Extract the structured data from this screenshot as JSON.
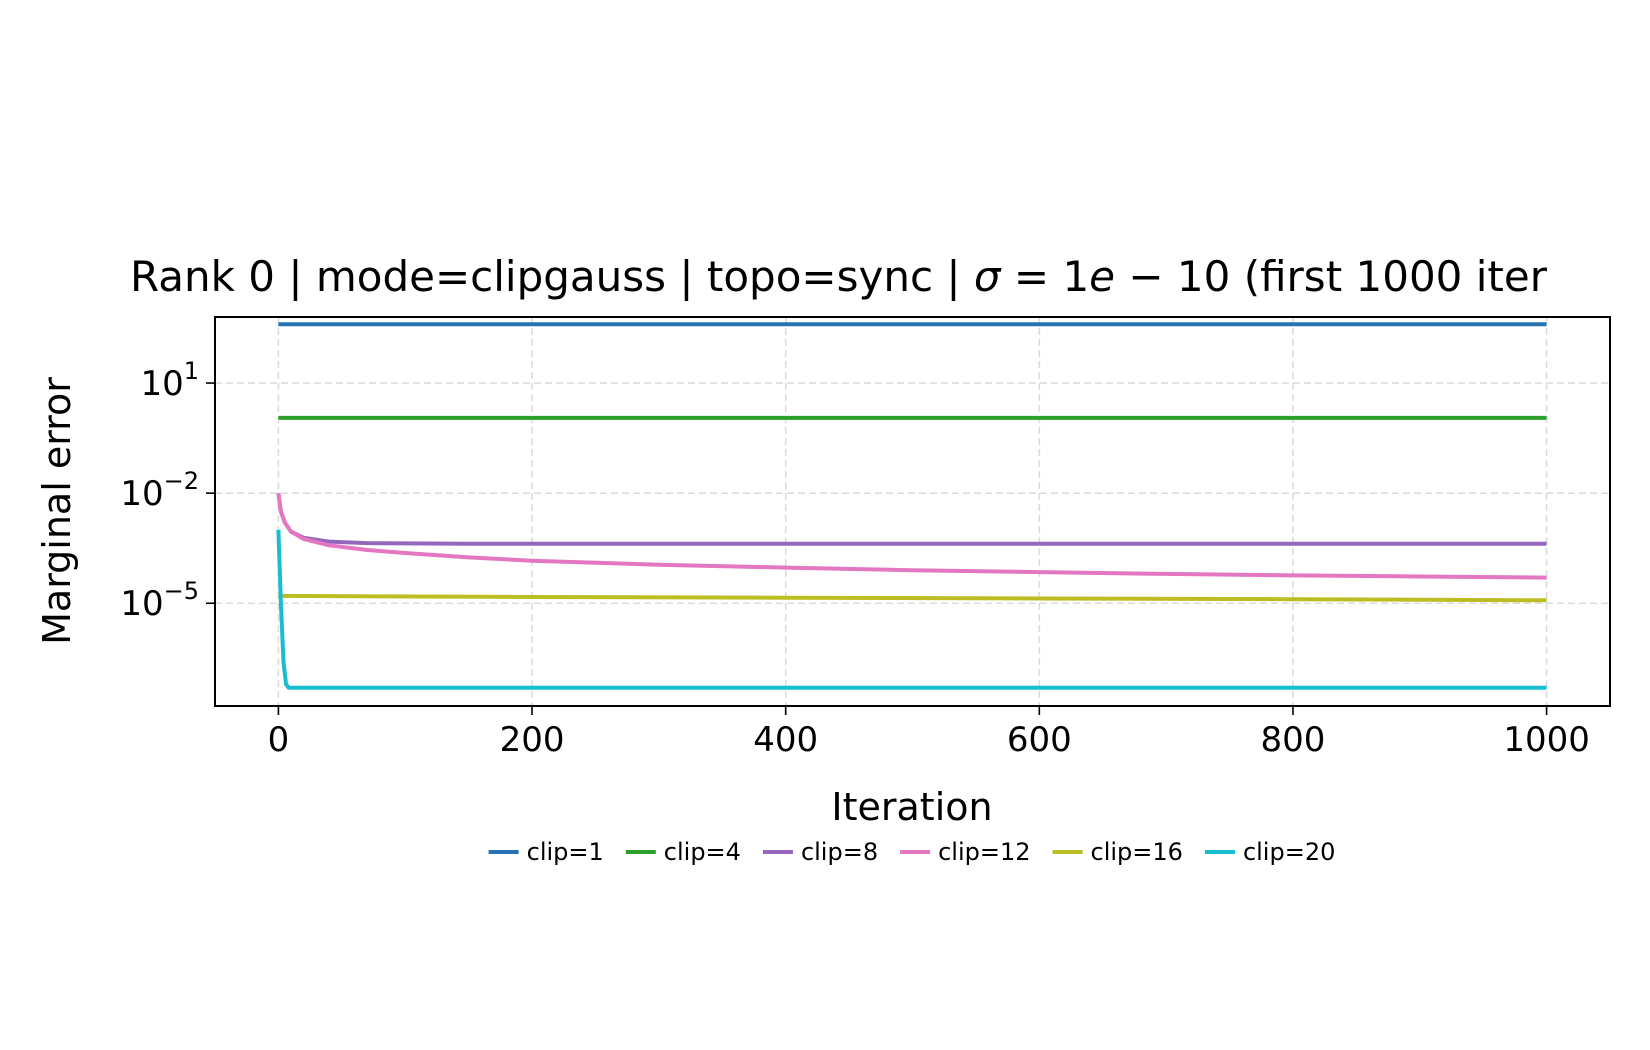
{
  "chart_data": {
    "type": "line",
    "title": "Rank 0 | mode=clipgauss | topo=sync | σ = 1e − 10 (first 1000 iter",
    "title_parts": {
      "main": "Rank 0 | mode=clipgauss | topo=sync | ",
      "sigma": "σ",
      "equals": " = ",
      "value_mantissa": "1",
      "value_e": "e",
      "value_tail": " − 10 (first 1000 iter"
    },
    "xlabel": "Iteration",
    "ylabel": "Marginal error",
    "xlim": [
      -50,
      1050
    ],
    "ylim_log10": [
      -7.8,
      2.8
    ],
    "yscale": "log",
    "grid": true,
    "legend_placement": "below",
    "x_ticks": [
      {
        "value": 0,
        "label": "0"
      },
      {
        "value": 200,
        "label": "200"
      },
      {
        "value": 400,
        "label": "400"
      },
      {
        "value": 600,
        "label": "600"
      },
      {
        "value": 800,
        "label": "800"
      },
      {
        "value": 1000,
        "label": "1000"
      }
    ],
    "y_ticks": [
      {
        "log10": 1,
        "base": "10",
        "exp": "1"
      },
      {
        "log10": -2,
        "base": "10",
        "exp": "−2"
      },
      {
        "log10": -5,
        "base": "10",
        "exp": "−5"
      }
    ],
    "series": [
      {
        "name": "clip=1",
        "color": "#2674b4",
        "x": [
          0,
          1000
        ],
        "log10_y": [
          2.6,
          2.6
        ]
      },
      {
        "name": "clip=4",
        "color": "#2ca02c",
        "x": [
          0,
          1000
        ],
        "log10_y": [
          0.05,
          0.05
        ]
      },
      {
        "name": "clip=8",
        "color": "#9467bd",
        "x": [
          0,
          2,
          5,
          10,
          20,
          40,
          70,
          100,
          150,
          200,
          1000
        ],
        "log10_y": [
          -2.0,
          -2.5,
          -2.8,
          -3.05,
          -3.22,
          -3.32,
          -3.36,
          -3.37,
          -3.38,
          -3.38,
          -3.38
        ]
      },
      {
        "name": "clip=12",
        "color": "#e377c2",
        "x": [
          0,
          2,
          5,
          10,
          20,
          40,
          70,
          100,
          150,
          200,
          300,
          400,
          500,
          600,
          700,
          800,
          900,
          1000
        ],
        "log10_y": [
          -2.0,
          -2.5,
          -2.8,
          -3.05,
          -3.25,
          -3.42,
          -3.55,
          -3.63,
          -3.75,
          -3.84,
          -3.95,
          -4.03,
          -4.1,
          -4.15,
          -4.2,
          -4.24,
          -4.27,
          -4.3
        ]
      },
      {
        "name": "clip=16",
        "color": "#bcbd22",
        "x": [
          0,
          200,
          400,
          600,
          800,
          1000
        ],
        "log10_y": [
          -4.8,
          -4.83,
          -4.85,
          -4.87,
          -4.89,
          -4.92
        ]
      },
      {
        "name": "clip=20",
        "color": "#17becf",
        "x": [
          0,
          2,
          4,
          6,
          8,
          1000
        ],
        "log10_y": [
          -3.0,
          -5.0,
          -6.6,
          -7.2,
          -7.3,
          -7.3
        ]
      }
    ]
  }
}
